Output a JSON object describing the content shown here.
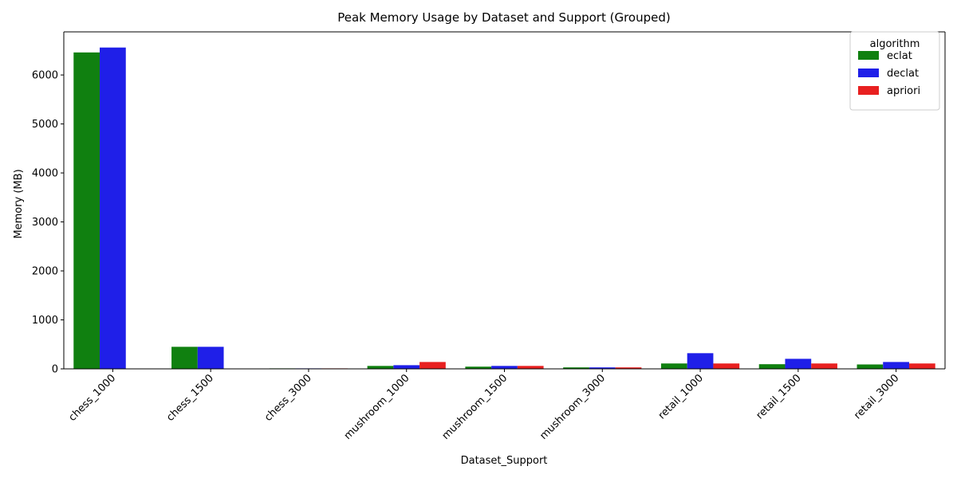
{
  "chart_data": {
    "type": "bar",
    "title": "Peak Memory Usage by Dataset and Support (Grouped)",
    "xlabel": "Dataset_Support",
    "ylabel": "Memory (MB)",
    "ylim": [
      0,
      6880
    ],
    "yticks": [
      0,
      1000,
      2000,
      3000,
      4000,
      5000,
      6000
    ],
    "grid": false,
    "legend_title": "algorithm",
    "legend_position": "top-right",
    "categories": [
      "chess_1000",
      "chess_1500",
      "chess_3000",
      "mushroom_1000",
      "mushroom_1500",
      "mushroom_3000",
      "retail_1000",
      "retail_1500",
      "retail_3000"
    ],
    "series": [
      {
        "name": "eclat",
        "color": "#108010",
        "values": [
          6460,
          450,
          10,
          60,
          45,
          30,
          110,
          95,
          90
        ]
      },
      {
        "name": "declat",
        "color": "#1f1fe8",
        "values": [
          6560,
          450,
          10,
          75,
          60,
          30,
          320,
          205,
          140
        ]
      },
      {
        "name": "apriori",
        "color": "#e82020",
        "values": [
          null,
          null,
          10,
          140,
          60,
          30,
          110,
          110,
          110
        ]
      }
    ]
  }
}
